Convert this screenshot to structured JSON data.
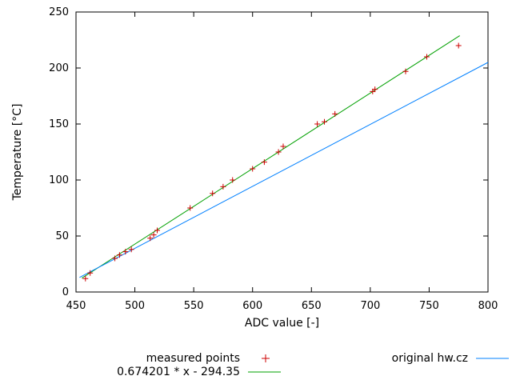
{
  "chart_data": {
    "type": "scatter",
    "title": "",
    "xlabel": "ADC value [-]",
    "ylabel": "Temperature [°C]",
    "xlim": [
      450,
      800
    ],
    "ylim": [
      0,
      250
    ],
    "xticks": [
      450,
      500,
      550,
      600,
      650,
      700,
      750,
      800
    ],
    "yticks": [
      0,
      50,
      100,
      150,
      200,
      250
    ],
    "grid": false,
    "legend_position": "bottom",
    "series": [
      {
        "name": "measured points",
        "type": "points",
        "marker": "plus",
        "color": "#cc0000",
        "points": [
          [
            458,
            12
          ],
          [
            462,
            17
          ],
          [
            483,
            30
          ],
          [
            487,
            33
          ],
          [
            492,
            36
          ],
          [
            497,
            38
          ],
          [
            513,
            48
          ],
          [
            516,
            51
          ],
          [
            519,
            55
          ],
          [
            547,
            75
          ],
          [
            566,
            88
          ],
          [
            575,
            94
          ],
          [
            583,
            100
          ],
          [
            600,
            110
          ],
          [
            610,
            116
          ],
          [
            622,
            125
          ],
          [
            626,
            130
          ],
          [
            655,
            150
          ],
          [
            661,
            152
          ],
          [
            670,
            159
          ],
          [
            702,
            179
          ],
          [
            704,
            181
          ],
          [
            730,
            197
          ],
          [
            748,
            210
          ],
          [
            775,
            220
          ]
        ]
      },
      {
        "name": "0.674201 * x - 294.35",
        "type": "line",
        "color": "#00a000",
        "slope": 0.674201,
        "intercept": -294.35,
        "x_range": [
          455,
          776
        ]
      },
      {
        "name": "original hw.cz",
        "type": "line",
        "color": "#0080ff",
        "points": [
          [
            453,
            13
          ],
          [
            800,
            205
          ]
        ]
      }
    ]
  }
}
